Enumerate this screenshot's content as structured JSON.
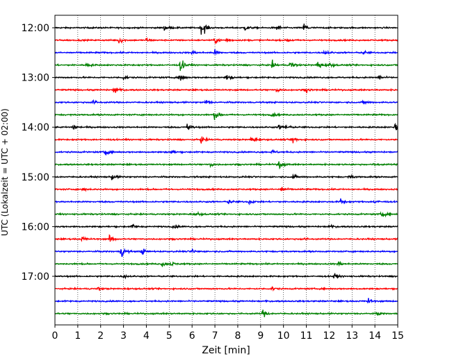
{
  "chart_data": {
    "type": "line",
    "title": "",
    "xlabel": "Zeit  [min]",
    "ylabel": "UTC (Lokalzeit = UTC + 02:00)",
    "xlim": [
      0,
      15
    ],
    "x_ticks": [
      "0",
      "1",
      "2",
      "3",
      "4",
      "5",
      "6",
      "7",
      "8",
      "9",
      "10",
      "11",
      "12",
      "13",
      "14",
      "15"
    ],
    "y_ticks": [
      {
        "label": "12:00",
        "trace_index": 0
      },
      {
        "label": "13:00",
        "trace_index": 4
      },
      {
        "label": "14:00",
        "trace_index": 8
      },
      {
        "label": "15:00",
        "trace_index": 12
      },
      {
        "label": "16:00",
        "trace_index": 16
      },
      {
        "label": "17:00",
        "trace_index": 20
      }
    ],
    "grid": "vertical dotted lines at each minute",
    "trace_interval_minutes": 15,
    "color_cycle": [
      "#000000",
      "#ff0000",
      "#0000ff",
      "#008000"
    ],
    "traces": [
      {
        "start": "12:00",
        "color": "#000000",
        "events": [
          [
            6.4,
            1.0
          ],
          [
            10.9,
            0.7
          ],
          [
            9.7,
            0.5
          ],
          [
            6.5,
            0.5
          ],
          [
            4.8,
            0.4
          ],
          [
            8.3,
            0.4
          ]
        ]
      },
      {
        "start": "12:15",
        "color": "#ff0000",
        "events": [
          [
            2.8,
            0.6
          ],
          [
            7.0,
            0.5
          ],
          [
            7.5,
            0.5
          ],
          [
            4.0,
            0.3
          ],
          [
            10.2,
            0.3
          ]
        ]
      },
      {
        "start": "12:30",
        "color": "#0000ff",
        "events": [
          [
            11.8,
            0.4
          ],
          [
            6.0,
            0.3
          ],
          [
            7.0,
            0.35
          ],
          [
            13.5,
            0.25
          ]
        ]
      },
      {
        "start": "12:45",
        "color": "#008000",
        "events": [
          [
            5.5,
            1.0
          ],
          [
            10.3,
            0.8
          ],
          [
            11.5,
            0.8
          ],
          [
            9.5,
            0.5
          ],
          [
            1.4,
            0.35
          ],
          [
            12.0,
            0.35
          ]
        ]
      },
      {
        "start": "13:00",
        "color": "#000000",
        "events": [
          [
            5.5,
            0.6
          ],
          [
            7.5,
            0.5
          ],
          [
            14.2,
            0.4
          ],
          [
            3.0,
            0.3
          ]
        ]
      },
      {
        "start": "13:15",
        "color": "#ff0000",
        "events": [
          [
            2.6,
            0.7
          ],
          [
            9.7,
            0.35
          ],
          [
            11.0,
            0.3
          ]
        ]
      },
      {
        "start": "13:30",
        "color": "#0000ff",
        "events": [
          [
            1.6,
            0.5
          ],
          [
            6.6,
            0.45
          ],
          [
            13.5,
            0.3
          ]
        ]
      },
      {
        "start": "13:45",
        "color": "#008000",
        "events": [
          [
            7.0,
            0.7
          ],
          [
            9.5,
            0.3
          ]
        ]
      },
      {
        "start": "14:00",
        "color": "#000000",
        "events": [
          [
            0.8,
            0.6
          ],
          [
            5.8,
            0.6
          ],
          [
            14.9,
            0.9
          ],
          [
            10.1,
            0.35
          ],
          [
            9.8,
            0.35
          ]
        ]
      },
      {
        "start": "14:15",
        "color": "#ff0000",
        "events": [
          [
            10.4,
            0.6
          ],
          [
            8.6,
            0.5
          ],
          [
            6.4,
            0.4
          ]
        ]
      },
      {
        "start": "14:30",
        "color": "#0000ff",
        "events": [
          [
            2.2,
            0.5
          ],
          [
            5.1,
            0.4
          ],
          [
            9.5,
            0.25
          ]
        ]
      },
      {
        "start": "14:45",
        "color": "#008000",
        "events": [
          [
            9.8,
            0.7
          ],
          [
            6.8,
            0.35
          ],
          [
            14.0,
            0.25
          ]
        ]
      },
      {
        "start": "15:00",
        "color": "#000000",
        "events": [
          [
            2.5,
            0.45
          ],
          [
            10.4,
            0.35
          ],
          [
            12.9,
            0.3
          ]
        ]
      },
      {
        "start": "15:15",
        "color": "#ff0000",
        "events": [
          [
            9.9,
            0.55
          ],
          [
            1.2,
            0.25
          ]
        ]
      },
      {
        "start": "15:30",
        "color": "#0000ff",
        "events": [
          [
            12.5,
            0.45
          ],
          [
            14.0,
            0.35
          ],
          [
            7.6,
            0.3
          ],
          [
            8.5,
            0.3
          ]
        ]
      },
      {
        "start": "15:45",
        "color": "#008000",
        "events": [
          [
            14.3,
            0.45
          ],
          [
            6.2,
            0.3
          ]
        ]
      },
      {
        "start": "16:00",
        "color": "#000000",
        "events": [
          [
            3.4,
            0.4
          ],
          [
            5.2,
            0.3
          ],
          [
            12.0,
            0.25
          ]
        ]
      },
      {
        "start": "16:15",
        "color": "#ff0000",
        "events": [
          [
            2.4,
            0.55
          ],
          [
            1.2,
            0.35
          ],
          [
            10.8,
            0.3
          ]
        ]
      },
      {
        "start": "16:30",
        "color": "#0000ff",
        "events": [
          [
            2.9,
            1.0
          ],
          [
            3.8,
            0.5
          ],
          [
            6.0,
            0.35
          ]
        ]
      },
      {
        "start": "16:45",
        "color": "#008000",
        "events": [
          [
            4.7,
            0.45
          ],
          [
            12.4,
            0.4
          ],
          [
            5.1,
            0.3
          ]
        ]
      },
      {
        "start": "17:00",
        "color": "#000000",
        "events": [
          [
            12.2,
            0.45
          ],
          [
            3.0,
            0.25
          ]
        ]
      },
      {
        "start": "17:15",
        "color": "#ff0000",
        "events": [
          [
            1.9,
            0.25
          ],
          [
            9.5,
            0.25
          ]
        ]
      },
      {
        "start": "17:30",
        "color": "#0000ff",
        "events": [
          [
            13.7,
            0.4
          ]
        ]
      },
      {
        "start": "17:45",
        "color": "#008000",
        "events": [
          [
            9.1,
            0.6
          ],
          [
            14.1,
            0.25
          ]
        ]
      }
    ]
  }
}
